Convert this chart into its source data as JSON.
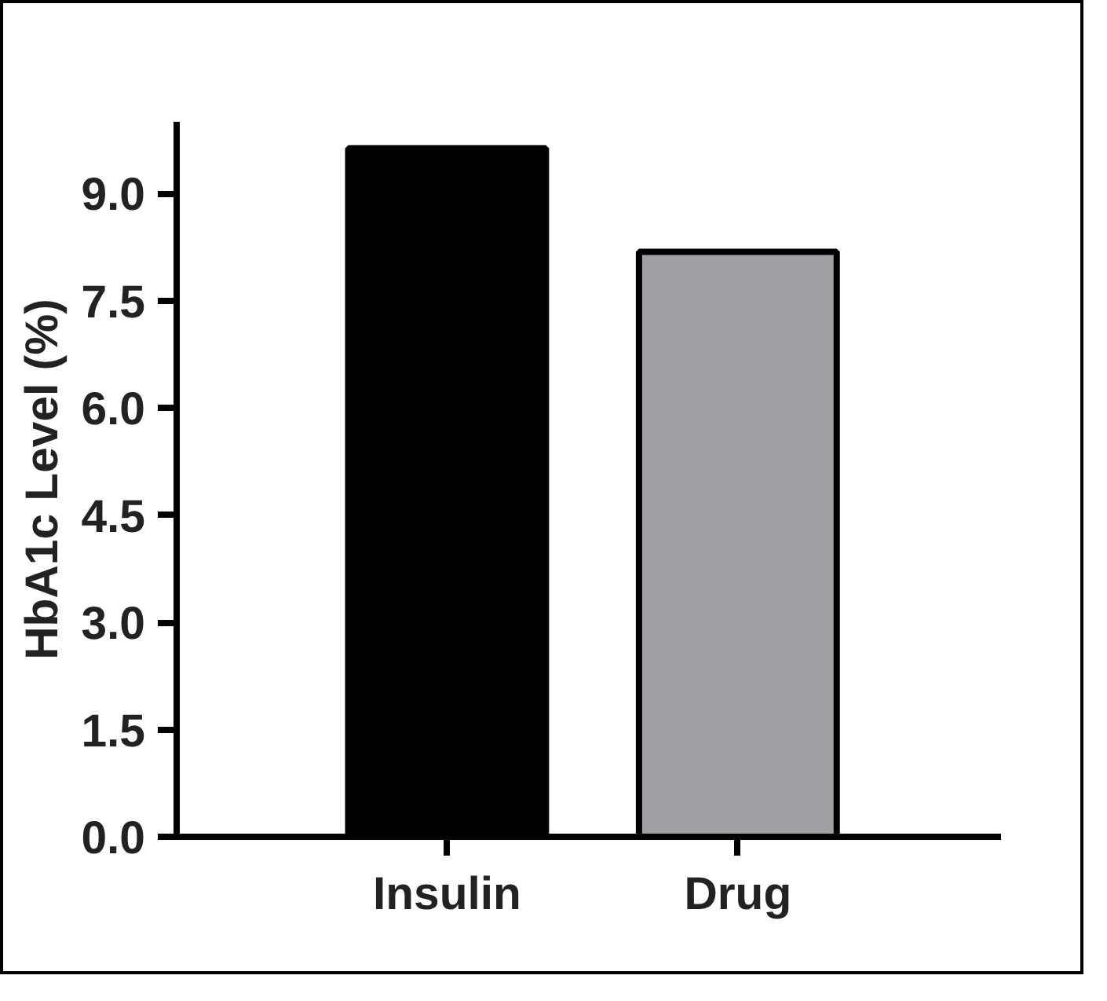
{
  "chart_data": {
    "type": "bar",
    "ylabel": "HbA1c Level (%)",
    "categories": [
      "Insulin",
      "Drug"
    ],
    "values": [
      9.63,
      8.18
    ],
    "colors": [
      "#000000",
      "#a0a0a4"
    ],
    "ylim": [
      0,
      10
    ],
    "yticks": [
      {
        "value": 0,
        "label": "0.0"
      },
      {
        "value": 1.5,
        "label": "1.5"
      },
      {
        "value": 3,
        "label": "3.0"
      },
      {
        "value": 4.5,
        "label": "4.5"
      },
      {
        "value": 6,
        "label": "6.0"
      },
      {
        "value": 7.5,
        "label": "7.5"
      },
      {
        "value": 9,
        "label": "9.0"
      }
    ],
    "grid": false
  }
}
